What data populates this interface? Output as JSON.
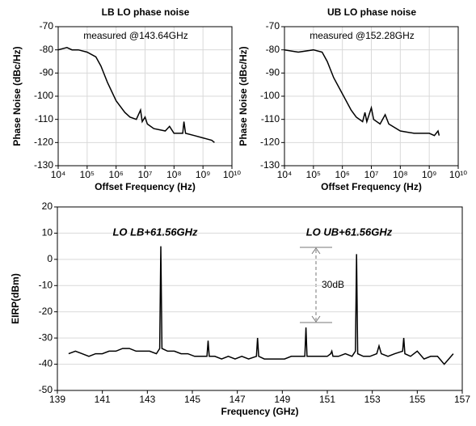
{
  "chart_data": [
    {
      "type": "line",
      "title": "LB LO phase noise",
      "xlabel": "Offset Frequency (Hz)",
      "ylabel": "Phase Noise (dBc/Hz)",
      "annotations": [
        "measured @143.64GHz"
      ],
      "xscale": "log",
      "grid": true,
      "color": "#000000",
      "xlim": [
        10000,
        10000000000
      ],
      "ylim": [
        -130,
        -70
      ],
      "xticks": [
        {
          "value": 10000,
          "label": "10⁴"
        },
        {
          "value": 100000,
          "label": "10⁵"
        },
        {
          "value": 1000000,
          "label": "10⁶"
        },
        {
          "value": 10000000,
          "label": "10⁷"
        },
        {
          "value": 100000000,
          "label": "10⁸"
        },
        {
          "value": 1000000000,
          "label": "10⁹"
        },
        {
          "value": 10000000000,
          "label": "10¹⁰"
        }
      ],
      "yticks": [
        -130,
        -120,
        -110,
        -100,
        -90,
        -80,
        -70
      ],
      "x": [
        10000,
        20000,
        30000,
        50000,
        100000,
        200000,
        300000,
        500000,
        1000000,
        2000000,
        3000000,
        5000000,
        7000000,
        8000000,
        10000000,
        12000000,
        20000000,
        50000000,
        70000000,
        100000000,
        200000000,
        220000000,
        250000000,
        500000000,
        1000000000,
        2000000000,
        2500000000
      ],
      "values": [
        -80,
        -79,
        -80,
        -80,
        -81,
        -83,
        -87,
        -94,
        -102,
        -107,
        -109,
        -110,
        -106,
        -111,
        -109,
        -112,
        -114,
        -115,
        -113,
        -116,
        -116,
        -111,
        -116,
        -117,
        -118,
        -119,
        -120
      ]
    },
    {
      "type": "line",
      "title": "UB LO phase noise",
      "xlabel": "Offset Frequency (Hz)",
      "ylabel": "Phase Noise (dBc/Hz)",
      "annotations": [
        "measured @152.28GHz"
      ],
      "xscale": "log",
      "grid": true,
      "color": "#000000",
      "xlim": [
        10000,
        10000000000
      ],
      "ylim": [
        -130,
        -70
      ],
      "xticks": [
        {
          "value": 10000,
          "label": "10⁴"
        },
        {
          "value": 100000,
          "label": "10⁵"
        },
        {
          "value": 1000000,
          "label": "10⁶"
        },
        {
          "value": 10000000,
          "label": "10⁷"
        },
        {
          "value": 100000000,
          "label": "10⁸"
        },
        {
          "value": 1000000000,
          "label": "10⁹"
        },
        {
          "value": 10000000000,
          "label": "10¹⁰"
        }
      ],
      "yticks": [
        -130,
        -120,
        -110,
        -100,
        -90,
        -80,
        -70
      ],
      "x": [
        10000,
        30000,
        100000,
        200000,
        300000,
        500000,
        1000000,
        2000000,
        3000000,
        5000000,
        6000000,
        7000000,
        10000000,
        12000000,
        20000000,
        30000000,
        40000000,
        100000000,
        300000000,
        1000000000,
        1500000000,
        2000000000,
        2200000000
      ],
      "values": [
        -80,
        -81,
        -80,
        -81,
        -85,
        -92,
        -99,
        -106,
        -109,
        -111,
        -107,
        -111,
        -105,
        -110,
        -112,
        -108,
        -112,
        -115,
        -116,
        -116,
        -117,
        -115,
        -117
      ]
    },
    {
      "type": "line",
      "xlabel": "Frequency (GHz)",
      "ylabel": "EIRP(dBm)",
      "annotations": [
        "LO LB+61.56GHz",
        "LO UB+61.56GHz",
        "30dB"
      ],
      "xscale": "linear",
      "grid": true,
      "color": "#000000",
      "xlim": [
        139,
        157
      ],
      "ylim": [
        -50,
        20
      ],
      "xticks": [
        139,
        141,
        143,
        145,
        147,
        149,
        151,
        153,
        155,
        157
      ],
      "yticks": [
        -50,
        -40,
        -30,
        -20,
        -10,
        0,
        10,
        20
      ],
      "x": [
        139.5,
        139.8,
        140.1,
        140.4,
        140.7,
        141.0,
        141.3,
        141.6,
        141.9,
        142.2,
        142.5,
        142.8,
        143.1,
        143.4,
        143.55,
        143.6,
        143.65,
        143.9,
        144.2,
        144.5,
        144.8,
        145.1,
        145.4,
        145.65,
        145.7,
        145.75,
        146.0,
        146.3,
        146.6,
        146.9,
        147.2,
        147.5,
        147.85,
        147.9,
        147.95,
        148.2,
        148.5,
        148.8,
        149.1,
        149.4,
        149.7,
        150.0,
        150.05,
        150.1,
        150.4,
        150.7,
        151.0,
        151.15,
        151.2,
        151.25,
        151.5,
        151.8,
        152.1,
        152.25,
        152.3,
        152.35,
        152.6,
        152.9,
        153.2,
        153.3,
        153.4,
        153.7,
        154.0,
        154.35,
        154.4,
        154.45,
        154.7,
        155.0,
        155.3,
        155.6,
        155.9,
        156.2,
        156.6
      ],
      "values": [
        -36,
        -35,
        -36,
        -37,
        -36,
        -36,
        -35,
        -35,
        -34,
        -34,
        -35,
        -35,
        -35,
        -36,
        -34,
        5,
        -34,
        -35,
        -35,
        -36,
        -36,
        -37,
        -37,
        -37,
        -31,
        -37,
        -37,
        -38,
        -37,
        -38,
        -37,
        -38,
        -37,
        -30,
        -37,
        -38,
        -38,
        -38,
        -38,
        -37,
        -37,
        -37,
        -26,
        -37,
        -37,
        -37,
        -37,
        -36,
        -35,
        -37,
        -37,
        -36,
        -37,
        -35,
        2,
        -36,
        -37,
        -37,
        -36,
        -33,
        -36,
        -37,
        -36,
        -35,
        -30,
        -36,
        -37,
        -35,
        -38,
        -37,
        -37,
        -40,
        -36
      ]
    }
  ]
}
